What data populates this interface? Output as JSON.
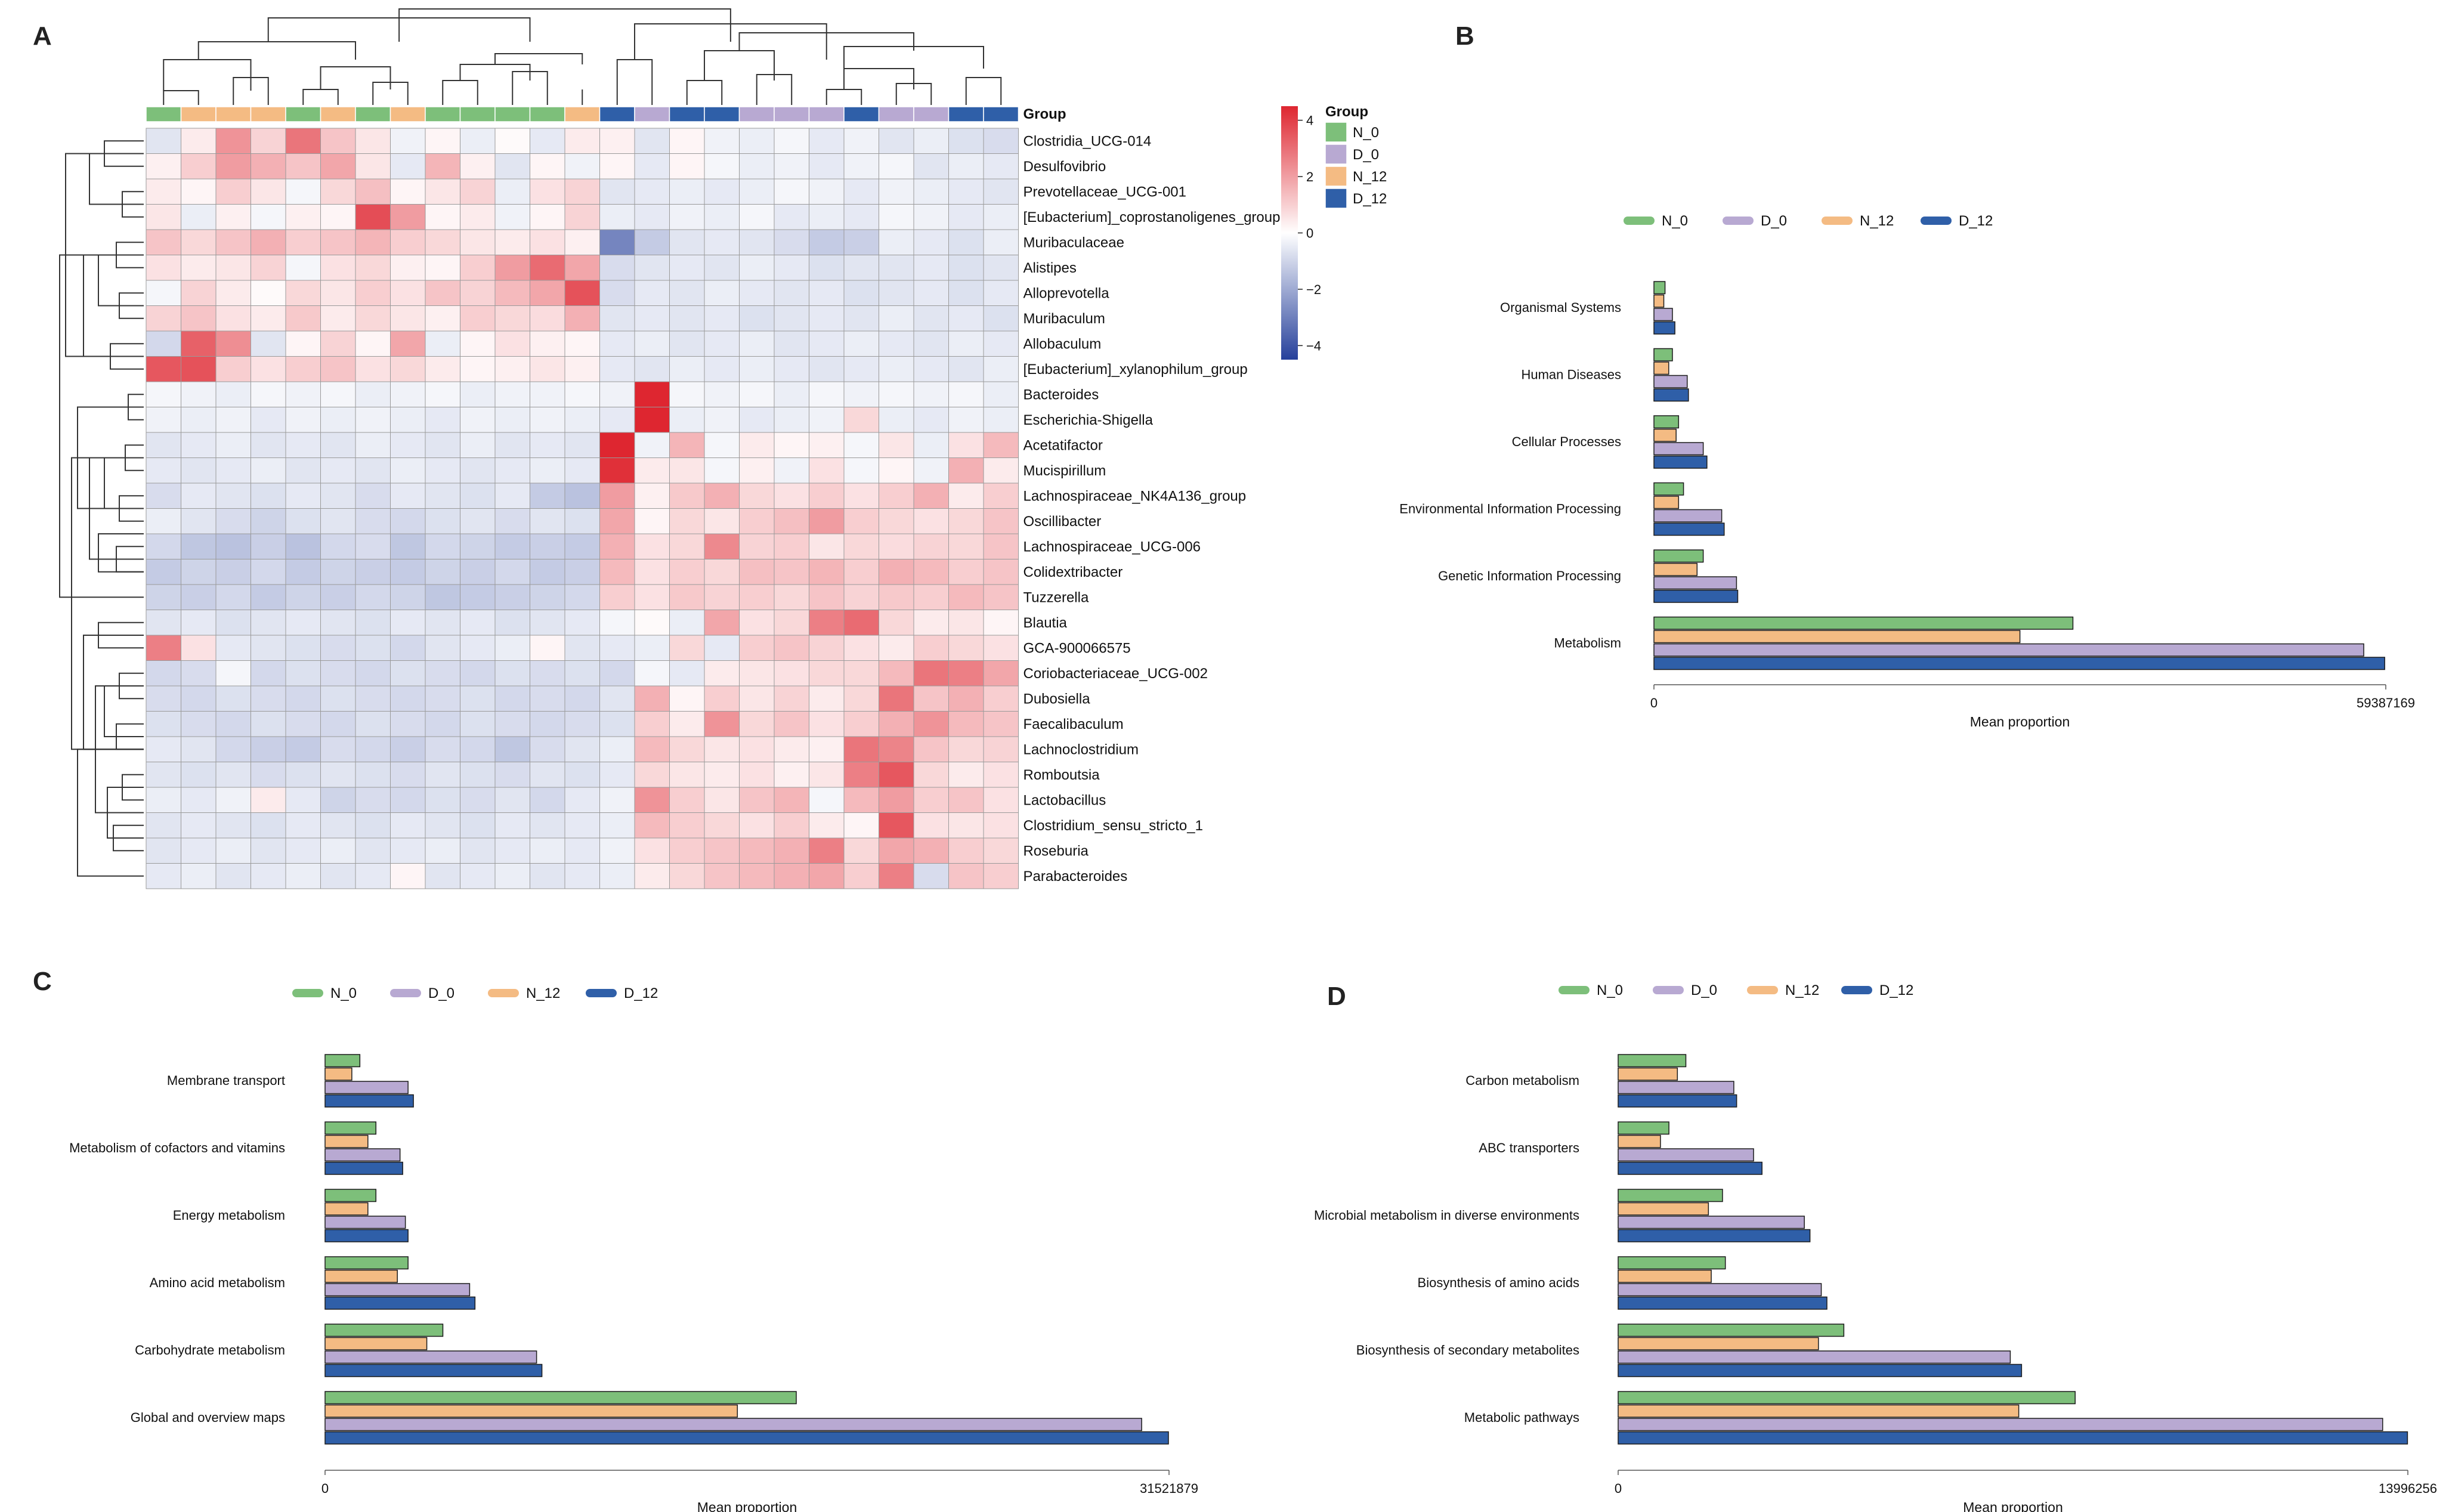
{
  "figure": {
    "panel_labels": [
      "A",
      "B",
      "C",
      "D"
    ]
  },
  "groups": [
    {
      "name": "N_0",
      "color": "#7dbf7a"
    },
    {
      "name": "D_0",
      "color": "#b8a9d2"
    },
    {
      "name": "N_12",
      "color": "#f4bb83"
    },
    {
      "name": "D_12",
      "color": "#2f5fa8"
    }
  ],
  "chart_data": [
    {
      "panel": "A",
      "type": "heatmap",
      "title": "",
      "group_row_label": "Group",
      "legend_title": "Group",
      "colorbar_ticks": [
        "4",
        "2",
        "0",
        "−2",
        "−4"
      ],
      "colorbar_values": [
        4,
        2,
        0,
        -2,
        -4
      ],
      "colorbar_range": [
        -4.5,
        4.5
      ],
      "column_groups": [
        "N_0",
        "N_12",
        "N_12",
        "N_12",
        "N_0",
        "N_12",
        "N_0",
        "N_12",
        "N_0",
        "N_0",
        "N_0",
        "N_0",
        "N_12",
        "D_12",
        "D_0",
        "D_12",
        "D_12",
        "D_0",
        "D_0",
        "D_0",
        "D_12",
        "D_0",
        "D_0",
        "D_12",
        "D_12"
      ],
      "rows": [
        "Clostridia_UCG-014",
        "Desulfovibrio",
        "Prevotellaceae_UCG-001",
        "[Eubacterium]_coprostanoligenes_group",
        "Muribaculaceae",
        "Alistipes",
        "Alloprevotella",
        "Muribaculum",
        "Allobaculum",
        "[Eubacterium]_xylanophilum_group",
        "Bacteroides",
        "Escherichia-Shigella",
        "Acetatifactor",
        "Mucispirillum",
        "Lachnospiraceae_NK4A136_group",
        "Oscillibacter",
        "Lachnospiraceae_UCG-006",
        "Colidextribacter",
        "Tuzzerella",
        "Blautia",
        "GCA-900066575",
        "Coriobacteriaceae_UCG-002",
        "Dubosiella",
        "Faecalibaculum",
        "Lachnoclostridium",
        "Romboutsia",
        "Lactobacillus",
        "Clostridium_sensu_stricto_1",
        "Roseburia",
        "Parabacteroides"
      ],
      "values": [
        [
          -0.6,
          0.4,
          2.2,
          0.9,
          2.8,
          1.2,
          0.5,
          -0.3,
          0.2,
          -0.4,
          0.1,
          -0.5,
          0.4,
          0.3,
          -0.6,
          0.2,
          -0.3,
          -0.4,
          -0.2,
          -0.5,
          -0.3,
          -0.6,
          -0.4,
          -0.7,
          -0.8
        ],
        [
          0.3,
          1.0,
          2.0,
          1.6,
          1.2,
          1.8,
          0.5,
          -0.5,
          1.5,
          0.3,
          -0.6,
          0.2,
          -0.3,
          0.2,
          -0.5,
          0.2,
          -0.2,
          -0.4,
          -0.3,
          -0.5,
          -0.3,
          -0.2,
          -0.6,
          -0.4,
          -0.5
        ],
        [
          0.4,
          0.2,
          1.0,
          0.5,
          -0.2,
          0.8,
          1.3,
          0.2,
          0.5,
          0.9,
          -0.4,
          0.6,
          0.9,
          -0.6,
          -0.5,
          -0.4,
          -0.5,
          -0.4,
          -0.2,
          -0.3,
          -0.5,
          -0.3,
          -0.4,
          -0.5,
          -0.6
        ],
        [
          0.5,
          -0.4,
          0.3,
          -0.2,
          0.3,
          0.2,
          3.6,
          2.0,
          0.2,
          0.4,
          -0.3,
          0.2,
          0.9,
          -0.4,
          -0.5,
          -0.3,
          -0.4,
          -0.2,
          -0.5,
          -0.4,
          -0.5,
          -0.2,
          -0.3,
          -0.5,
          -0.4
        ],
        [
          1.2,
          0.8,
          1.2,
          1.6,
          1.0,
          1.2,
          1.5,
          1.0,
          0.8,
          0.5,
          0.4,
          0.6,
          0.3,
          -2.8,
          -1.2,
          -0.6,
          -0.5,
          -0.6,
          -0.8,
          -1.2,
          -1.1,
          -0.4,
          -0.5,
          -0.7,
          -0.4
        ],
        [
          0.6,
          0.4,
          0.5,
          0.9,
          -0.2,
          0.6,
          0.8,
          0.3,
          0.2,
          1.0,
          2.0,
          3.0,
          1.8,
          -0.8,
          -0.6,
          -0.5,
          -0.6,
          -0.4,
          -0.5,
          -0.7,
          -0.6,
          -0.6,
          -0.5,
          -0.7,
          -0.6
        ],
        [
          -0.2,
          0.9,
          0.4,
          0.1,
          0.8,
          0.5,
          1.0,
          0.6,
          1.2,
          0.9,
          1.4,
          1.8,
          3.5,
          -0.8,
          -0.5,
          -0.6,
          -0.4,
          -0.5,
          -0.6,
          -0.5,
          -0.7,
          -0.6,
          -0.5,
          -0.7,
          -0.5
        ],
        [
          0.9,
          1.2,
          0.6,
          0.4,
          1.1,
          0.4,
          0.8,
          0.5,
          0.3,
          1.0,
          0.8,
          0.7,
          1.6,
          -0.6,
          -0.5,
          -0.6,
          -0.5,
          -0.7,
          -0.6,
          -0.5,
          -0.6,
          -0.4,
          -0.6,
          -0.5,
          -0.7
        ],
        [
          -0.9,
          3.2,
          2.3,
          -0.6,
          0.2,
          0.9,
          0.2,
          1.8,
          -0.4,
          0.2,
          0.6,
          0.3,
          0.2,
          -0.5,
          -0.4,
          -0.6,
          -0.5,
          -0.4,
          -0.6,
          -0.5,
          -0.4,
          -0.5,
          -0.6,
          -0.4,
          -0.5
        ],
        [
          3.4,
          3.5,
          1.0,
          0.6,
          1.0,
          1.2,
          0.6,
          0.8,
          0.4,
          0.2,
          0.3,
          0.5,
          0.3,
          -0.5,
          -0.6,
          -0.4,
          -0.5,
          -0.4,
          -0.5,
          -0.6,
          -0.5,
          -0.4,
          -0.5,
          -0.6,
          -0.4
        ],
        [
          -0.2,
          -0.3,
          -0.4,
          -0.2,
          -0.3,
          -0.2,
          -0.4,
          -0.3,
          -0.2,
          -0.4,
          -0.3,
          -0.3,
          -0.2,
          -0.3,
          4.4,
          -0.2,
          -0.3,
          -0.2,
          -0.4,
          -0.2,
          -0.3,
          -0.2,
          -0.3,
          -0.2,
          -0.4
        ],
        [
          -0.3,
          -0.4,
          -0.3,
          -0.5,
          -0.3,
          -0.4,
          -0.3,
          -0.4,
          -0.5,
          -0.3,
          -0.4,
          -0.3,
          -0.4,
          -0.5,
          4.4,
          -0.4,
          -0.3,
          -0.5,
          -0.4,
          -0.3,
          0.8,
          -0.4,
          -0.5,
          -0.3,
          -0.4
        ],
        [
          -0.6,
          -0.5,
          -0.4,
          -0.6,
          -0.5,
          -0.6,
          -0.4,
          -0.5,
          -0.6,
          -0.4,
          -0.6,
          -0.5,
          -0.6,
          4.4,
          -0.3,
          1.5,
          -0.2,
          0.4,
          0.2,
          0.3,
          -0.2,
          0.5,
          -0.4,
          0.6,
          1.4
        ],
        [
          -0.5,
          -0.6,
          -0.5,
          -0.4,
          -0.6,
          -0.5,
          -0.6,
          -0.4,
          -0.5,
          -0.6,
          -0.5,
          -0.4,
          -0.5,
          4.2,
          0.4,
          0.5,
          -0.2,
          0.3,
          -0.3,
          0.6,
          -0.2,
          0.2,
          -0.3,
          1.6,
          0.4
        ],
        [
          -0.8,
          -0.5,
          -0.6,
          -0.7,
          -0.5,
          -0.6,
          -0.8,
          -0.5,
          -0.6,
          -0.7,
          -0.5,
          -1.2,
          -1.4,
          2.0,
          0.3,
          1.1,
          1.6,
          0.8,
          0.6,
          1.0,
          0.6,
          1.0,
          1.6,
          0.4,
          1.0
        ],
        [
          -0.4,
          -0.6,
          -0.8,
          -1.0,
          -0.7,
          -0.6,
          -0.8,
          -0.9,
          -0.7,
          -0.6,
          -0.8,
          -0.6,
          -0.7,
          1.8,
          0.2,
          0.8,
          0.5,
          1.0,
          1.3,
          2.0,
          1.0,
          0.8,
          0.6,
          0.8,
          1.2
        ],
        [
          -0.9,
          -1.3,
          -1.4,
          -1.1,
          -1.4,
          -0.9,
          -0.8,
          -1.3,
          -0.9,
          -1.0,
          -1.2,
          -1.1,
          -1.2,
          1.6,
          0.6,
          0.8,
          2.4,
          0.9,
          1.0,
          0.5,
          0.8,
          0.7,
          0.9,
          0.8,
          1.2
        ],
        [
          -1.2,
          -1.0,
          -1.1,
          -0.9,
          -1.2,
          -1.0,
          -1.1,
          -1.2,
          -1.0,
          -1.1,
          -0.9,
          -1.2,
          -1.1,
          1.4,
          0.6,
          1.0,
          0.8,
          1.3,
          1.2,
          1.5,
          1.0,
          1.6,
          1.4,
          1.0,
          1.2
        ],
        [
          -1.0,
          -1.1,
          -0.9,
          -1.2,
          -1.0,
          -1.1,
          -0.9,
          -1.0,
          -1.3,
          -1.2,
          -1.1,
          -1.0,
          -0.9,
          1.0,
          0.6,
          1.1,
          0.9,
          1.0,
          0.8,
          1.2,
          0.9,
          1.1,
          1.0,
          1.4,
          1.2
        ],
        [
          -0.6,
          -0.5,
          -0.7,
          -0.6,
          -0.5,
          -0.6,
          -0.7,
          -0.5,
          -0.6,
          -0.5,
          -0.7,
          -0.6,
          -0.5,
          -0.2,
          0.1,
          -0.4,
          1.8,
          0.6,
          0.8,
          2.6,
          3.0,
          0.8,
          0.4,
          0.5,
          0.2
        ],
        [
          2.6,
          0.6,
          -0.5,
          -0.6,
          -0.7,
          -0.8,
          -0.7,
          -0.9,
          -0.6,
          -0.5,
          -0.4,
          0.2,
          -0.6,
          -0.5,
          -0.4,
          0.8,
          -0.5,
          1.0,
          1.2,
          0.9,
          0.6,
          0.4,
          1.0,
          0.8,
          0.6
        ],
        [
          -0.9,
          -0.8,
          -0.2,
          -0.9,
          -0.7,
          -0.8,
          -0.9,
          -0.7,
          -0.8,
          -0.9,
          -0.7,
          -0.8,
          -0.7,
          -0.9,
          -0.2,
          -0.5,
          0.4,
          0.5,
          0.6,
          0.8,
          0.8,
          1.4,
          2.8,
          2.6,
          1.8
        ],
        [
          -0.8,
          -0.9,
          -0.7,
          -0.8,
          -0.9,
          -0.7,
          -0.8,
          -0.9,
          -0.8,
          -0.7,
          -0.9,
          -0.8,
          -0.9,
          -0.6,
          1.6,
          0.2,
          1.0,
          0.5,
          0.9,
          0.4,
          0.8,
          2.8,
          1.2,
          1.6,
          1.0
        ],
        [
          -0.7,
          -0.8,
          -0.9,
          -0.7,
          -0.8,
          -0.9,
          -0.7,
          -0.8,
          -0.9,
          -0.7,
          -0.8,
          -0.9,
          -0.8,
          -0.7,
          1.0,
          0.4,
          2.2,
          0.8,
          1.2,
          0.6,
          1.0,
          1.6,
          2.2,
          1.4,
          1.2
        ],
        [
          -0.5,
          -0.6,
          -0.9,
          -1.1,
          -1.2,
          -0.8,
          -0.9,
          -1.1,
          -0.8,
          -0.9,
          -1.3,
          -0.8,
          -0.6,
          -0.4,
          1.4,
          0.8,
          0.5,
          0.6,
          0.4,
          0.3,
          2.8,
          2.5,
          1.2,
          0.8,
          0.9
        ],
        [
          -0.6,
          -0.7,
          -0.6,
          -0.8,
          -0.7,
          -0.6,
          -0.7,
          -0.8,
          -0.6,
          -0.7,
          -0.8,
          -0.6,
          -0.7,
          -0.5,
          0.8,
          0.5,
          0.4,
          0.6,
          0.3,
          0.5,
          2.6,
          3.4,
          0.8,
          0.4,
          0.6
        ],
        [
          -0.4,
          -0.5,
          -0.3,
          0.4,
          -0.5,
          -1.0,
          -0.8,
          -0.9,
          -0.7,
          -0.8,
          -0.6,
          -0.9,
          -0.5,
          -0.3,
          2.2,
          1.0,
          0.5,
          1.2,
          1.5,
          -0.2,
          1.4,
          2.0,
          1.0,
          1.2,
          0.6
        ],
        [
          -0.6,
          -0.5,
          -0.6,
          -0.7,
          -0.5,
          -0.6,
          -0.7,
          -0.5,
          -0.6,
          -0.7,
          -0.5,
          -0.6,
          -0.5,
          -0.4,
          1.4,
          1.0,
          0.8,
          0.6,
          1.0,
          0.4,
          0.2,
          3.4,
          0.6,
          0.5,
          0.6
        ],
        [
          -0.6,
          -0.5,
          -0.4,
          -0.6,
          -0.5,
          -0.4,
          -0.6,
          -0.5,
          -0.4,
          -0.6,
          -0.5,
          -0.4,
          -0.5,
          -0.3,
          0.6,
          1.0,
          1.2,
          1.4,
          1.6,
          2.6,
          0.8,
          1.8,
          1.6,
          1.0,
          0.8
        ],
        [
          -0.5,
          -0.4,
          -0.6,
          -0.5,
          -0.4,
          -0.6,
          -0.5,
          0.2,
          -0.6,
          -0.5,
          -0.4,
          -0.6,
          -0.5,
          -0.4,
          0.4,
          0.8,
          1.2,
          1.4,
          1.6,
          1.8,
          1.0,
          2.6,
          -0.8,
          1.2,
          1.0
        ]
      ]
    },
    {
      "panel": "B",
      "type": "bar",
      "orientation": "horizontal",
      "title": "",
      "xlabel": "Mean proportion",
      "x_ticks": [
        "0",
        "59387169"
      ],
      "xlim": [
        0,
        59387169
      ],
      "legend": [
        "N_0",
        "D_0",
        "N_12",
        "D_12"
      ],
      "categories": [
        "Organismal Systems",
        "Human Diseases",
        "Cellular Processes",
        "Environmental Information Processing",
        "Genetic Information Processing",
        "Metabolism"
      ],
      "series": [
        {
          "name": "N_0",
          "values": [
            900000,
            1500000,
            2000000,
            2400000,
            4000000,
            34000000
          ]
        },
        {
          "name": "D_0",
          "values": [
            1500000,
            2700000,
            4000000,
            5500000,
            6700000,
            57600000
          ]
        },
        {
          "name": "N_12",
          "values": [
            800000,
            1200000,
            1800000,
            2000000,
            3500000,
            29700000
          ]
        },
        {
          "name": "D_12",
          "values": [
            1700000,
            2800000,
            4300000,
            5700000,
            6800000,
            59300000
          ]
        }
      ]
    },
    {
      "panel": "C",
      "type": "bar",
      "orientation": "horizontal",
      "title": "",
      "xlabel": "Mean proportion",
      "x_ticks": [
        "0",
        "31521879"
      ],
      "xlim": [
        0,
        31521879
      ],
      "legend": [
        "N_0",
        "D_0",
        "N_12",
        "D_12"
      ],
      "categories": [
        "Membrane transport",
        "Metabolism of cofactors and vitamins",
        "Energy metabolism",
        "Amino acid metabolism",
        "Carbohydrate metabolism",
        "Global and overview maps"
      ],
      "series": [
        {
          "name": "N_0",
          "values": [
            1300000,
            1900000,
            1900000,
            3100000,
            4400000,
            17600000
          ]
        },
        {
          "name": "D_0",
          "values": [
            3100000,
            2800000,
            3000000,
            5400000,
            7900000,
            30500000
          ]
        },
        {
          "name": "N_12",
          "values": [
            1000000,
            1600000,
            1600000,
            2700000,
            3800000,
            15400000
          ]
        },
        {
          "name": "D_12",
          "values": [
            3300000,
            2900000,
            3100000,
            5600000,
            8100000,
            31500000
          ]
        }
      ]
    },
    {
      "panel": "D",
      "type": "bar",
      "orientation": "horizontal",
      "title": "",
      "xlabel": "Mean proportion",
      "x_ticks": [
        "0",
        "13996256"
      ],
      "xlim": [
        0,
        13996256
      ],
      "legend": [
        "N_0",
        "D_0",
        "N_12",
        "D_12"
      ],
      "categories": [
        "Carbon metabolism",
        "ABC transporters",
        "Microbial metabolism in diverse environments",
        "Biosynthesis of amino acids",
        "Biosynthesis of secondary metabolites",
        "Metabolic pathways"
      ],
      "series": [
        {
          "name": "N_0",
          "values": [
            1200000,
            900000,
            1850000,
            1900000,
            4000000,
            8100000
          ]
        },
        {
          "name": "D_0",
          "values": [
            2050000,
            2400000,
            3300000,
            3600000,
            6950000,
            13550000
          ]
        },
        {
          "name": "N_12",
          "values": [
            1050000,
            750000,
            1600000,
            1650000,
            3550000,
            7100000
          ]
        },
        {
          "name": "D_12",
          "values": [
            2100000,
            2550000,
            3400000,
            3700000,
            7150000,
            13990000
          ]
        }
      ]
    }
  ]
}
